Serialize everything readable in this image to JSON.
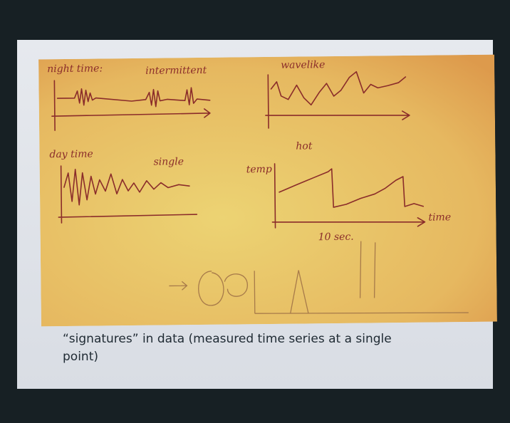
{
  "sketch": {
    "labels": [
      "night time:",
      "intermittent",
      "wavelike",
      "day time",
      "single",
      "temp",
      "hot",
      "time",
      "10 sec."
    ]
  },
  "caption": "“signatures” in data (measured time series at a single point)"
}
